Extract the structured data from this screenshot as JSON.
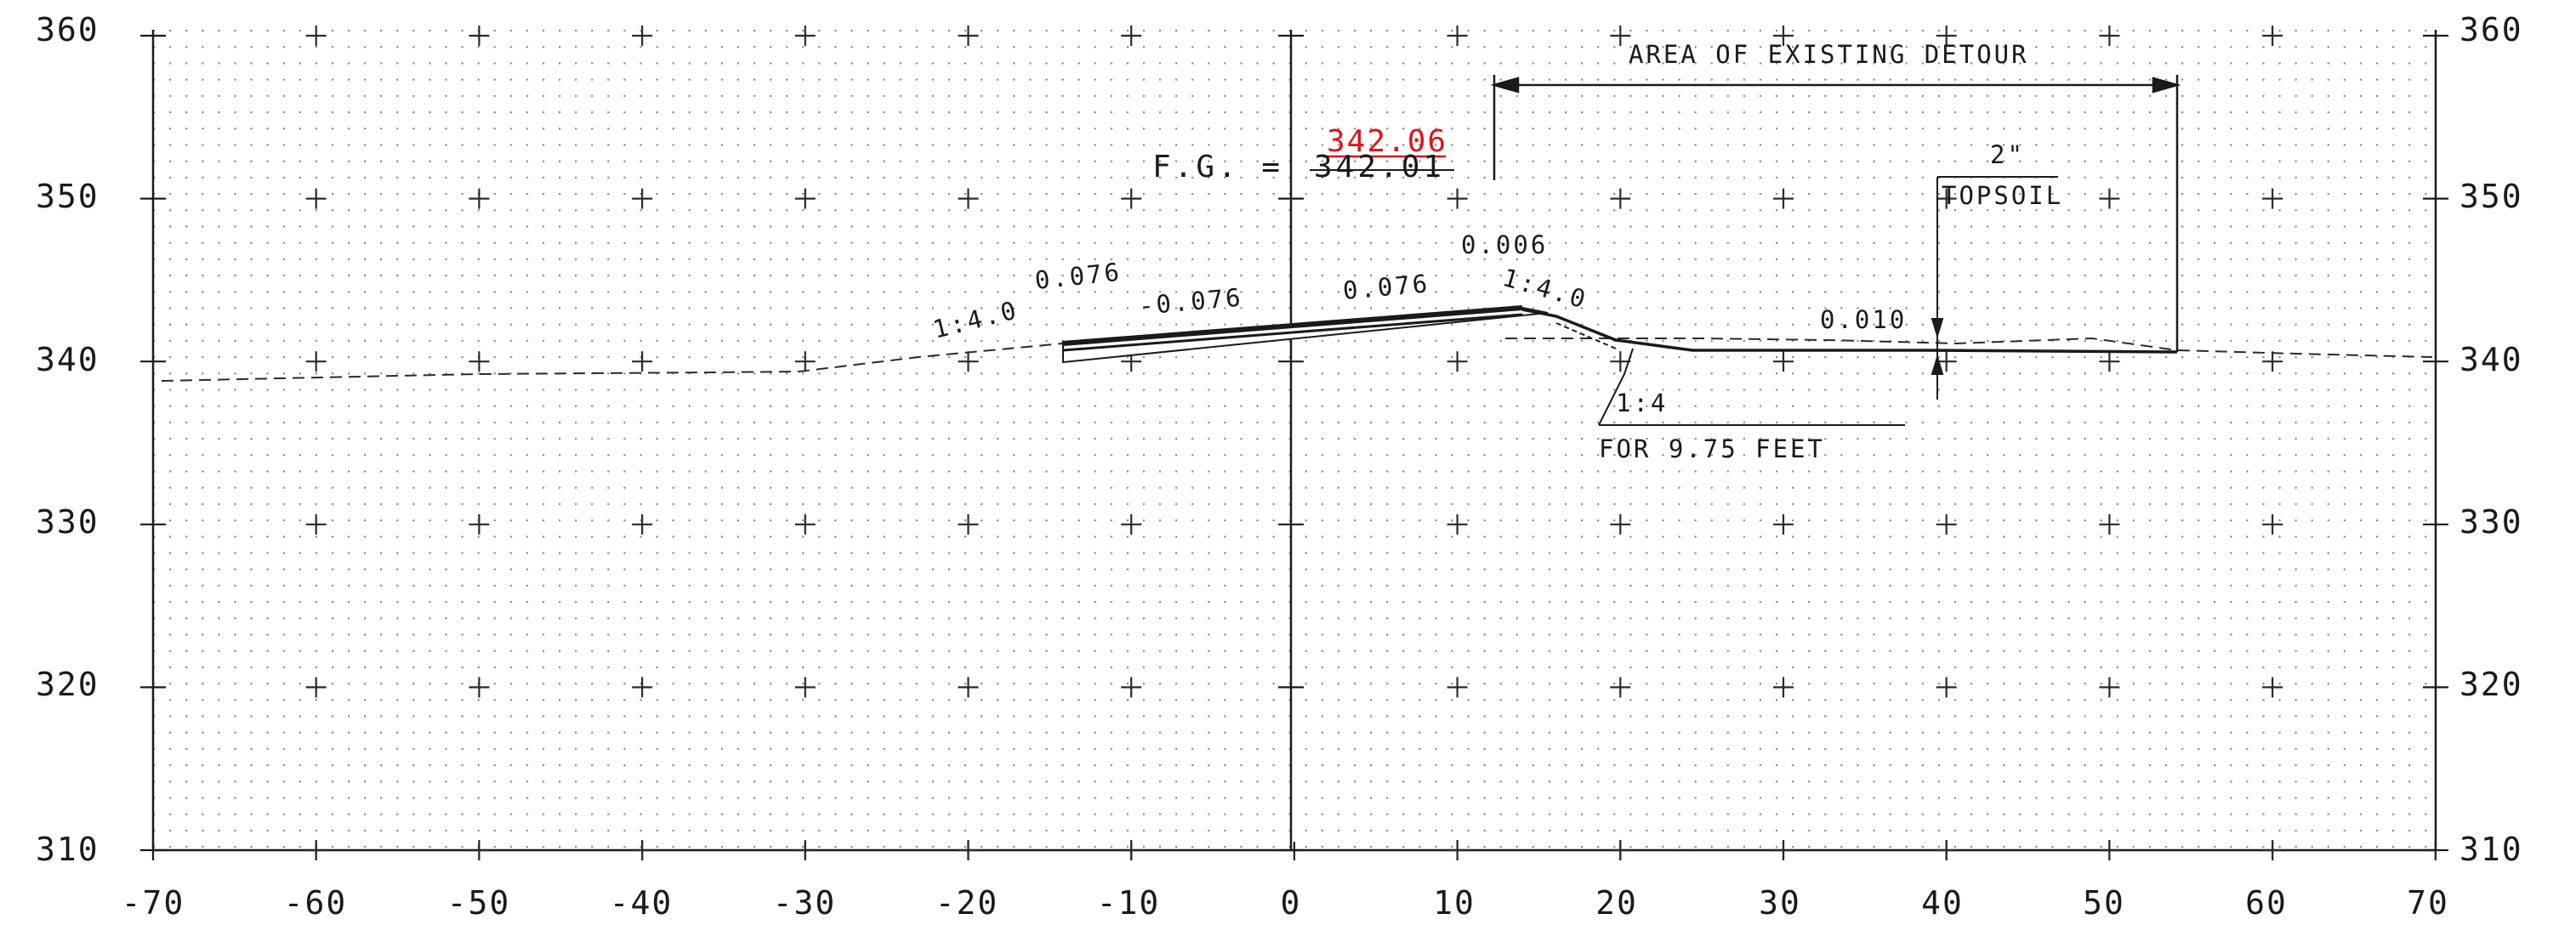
{
  "elevation_labels": [
    "360",
    "350",
    "340",
    "330",
    "320",
    "310"
  ],
  "offset_labels": [
    "-70",
    "-60",
    "-50",
    "-40",
    "-30",
    "-20",
    "-10",
    "0",
    "10",
    "20",
    "30",
    "40",
    "50",
    "60",
    "70"
  ],
  "annotations": {
    "detour": "AREA OF EXISTING DETOUR",
    "fg_prefix": "F.G. =",
    "fg_old": "342.01",
    "fg_new": "342.06",
    "slope_left_1": "1:4.0",
    "slope_left_2": "0.076",
    "slope_mid_1": "-0.076",
    "slope_mid_2": "0.076",
    "slope_right_top": "0.006",
    "slope_right_1": "1:4.0",
    "slope_far_right": "0.010",
    "topsoil_thickness": "2\"",
    "topsoil": "TOPSOIL",
    "ratio": "1:4",
    "for_feet": "FOR 9.75 FEET"
  },
  "colors": {
    "line": "#1a1a1a",
    "grid": "#8a8a8a",
    "revision": "#e0141a"
  }
}
